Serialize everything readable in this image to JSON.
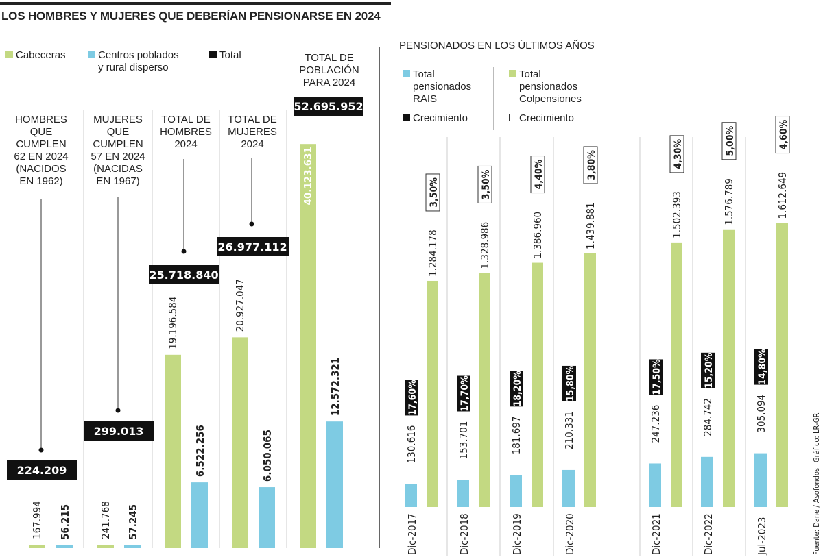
{
  "colors": {
    "cabeceras": "#c3d982",
    "rural": "#7ecbe3",
    "total": "#111111",
    "divider": "#cccccc"
  },
  "title": "LOS HOMBRES Y MUJERES QUE DEBERÍAN PENSIONARSE EN 2024",
  "left_legend": {
    "cabeceras": "Cabeceras",
    "rural_1": "Centros poblados",
    "rural_2": "y rural disperso",
    "total": "Total"
  },
  "right_title": "PENSIONADOS EN LOS ÚLTIMOS AÑOS",
  "right_legend": {
    "rais_1": "Total",
    "rais_2": "pensionados",
    "rais_3": "RAIS",
    "rais_growth": "Crecimiento",
    "colp_1": "Total",
    "colp_2": "pensionados",
    "colp_3": "Colpensiones",
    "colp_growth": "Crecimiento"
  },
  "source": "Fuente: Dane / Asofondos",
  "credit": "Gráfico: LR-GR",
  "chart_data": [
    {
      "type": "bar",
      "title": "LOS HOMBRES Y MUJERES QUE DEBERÍAN PENSIONARSE EN 2024",
      "series_names": [
        "Cabeceras",
        "Centros poblados y rural disperso",
        "Total"
      ],
      "groups": [
        {
          "header": [
            "HOMBRES",
            "QUE",
            "CUMPLEN",
            "62 EN 2024",
            "(NACIDOS",
            "EN 1962)"
          ],
          "cabeceras": 167994,
          "rural": 56215,
          "total": 224209,
          "cabeceras_label": "167.994",
          "rural_label": "56.215",
          "total_label": "224.209"
        },
        {
          "header": [
            "MUJERES",
            "QUE",
            "CUMPLEN",
            "57 EN 2024",
            "(NACIDAS",
            "EN 1967)"
          ],
          "cabeceras": 241768,
          "rural": 57245,
          "total": 299013,
          "cabeceras_label": "241.768",
          "rural_label": "57.245",
          "total_label": "299.013"
        },
        {
          "header": [
            "TOTAL DE",
            "HOMBRES",
            "2024"
          ],
          "cabeceras": 19196584,
          "rural": 6522256,
          "total": 25718840,
          "cabeceras_label": "19.196.584",
          "rural_label": "6.522.256",
          "total_label": "25.718.840"
        },
        {
          "header": [
            "TOTAL DE",
            "MUJERES",
            "2024"
          ],
          "cabeceras": 20927047,
          "rural": 6050065,
          "total": 26977112,
          "cabeceras_label": "20.927.047",
          "rural_label": "6.050.065",
          "total_label": "26.977.112"
        },
        {
          "header": [
            "TOTAL DE",
            "POBLACIÓN",
            "PARA 2024"
          ],
          "cabeceras": 40123631,
          "rural": 12572321,
          "total": 52695952,
          "cabeceras_label": "40.123.631",
          "rural_label": "12.572.321",
          "total_label": "52.695.952"
        }
      ]
    },
    {
      "type": "bar",
      "title": "PENSIONADOS EN LOS ÚLTIMOS AÑOS",
      "categories": [
        "Dic-2017",
        "Dic-2018",
        "Dic-2019",
        "Dic-2020",
        "Dic-2021",
        "Dic-2022",
        "Jul-2023"
      ],
      "series": [
        {
          "name": "Total pensionados RAIS",
          "values": [
            130616,
            153701,
            181697,
            210331,
            247236,
            284742,
            305094
          ],
          "labels": [
            "130.616",
            "153.701",
            "181.697",
            "210.331",
            "247.236",
            "284.742",
            "305.094"
          ],
          "growth": [
            "17,60%",
            "17,70%",
            "18,20%",
            "15,80%",
            "17,50%",
            "15,20%",
            "14,80%"
          ]
        },
        {
          "name": "Total pensionados Colpensiones",
          "values": [
            1284178,
            1328986,
            1386960,
            1439881,
            1502393,
            1576789,
            1612649
          ],
          "labels": [
            "1.284.178",
            "1.328.986",
            "1.386.960",
            "1.439.881",
            "1.502.393",
            "1.576.789",
            "1.612.649"
          ],
          "growth": [
            "3,50%",
            "3,50%",
            "4,40%",
            "3,80%",
            "4,30%",
            "5,00%",
            "4,60%"
          ]
        }
      ]
    }
  ]
}
